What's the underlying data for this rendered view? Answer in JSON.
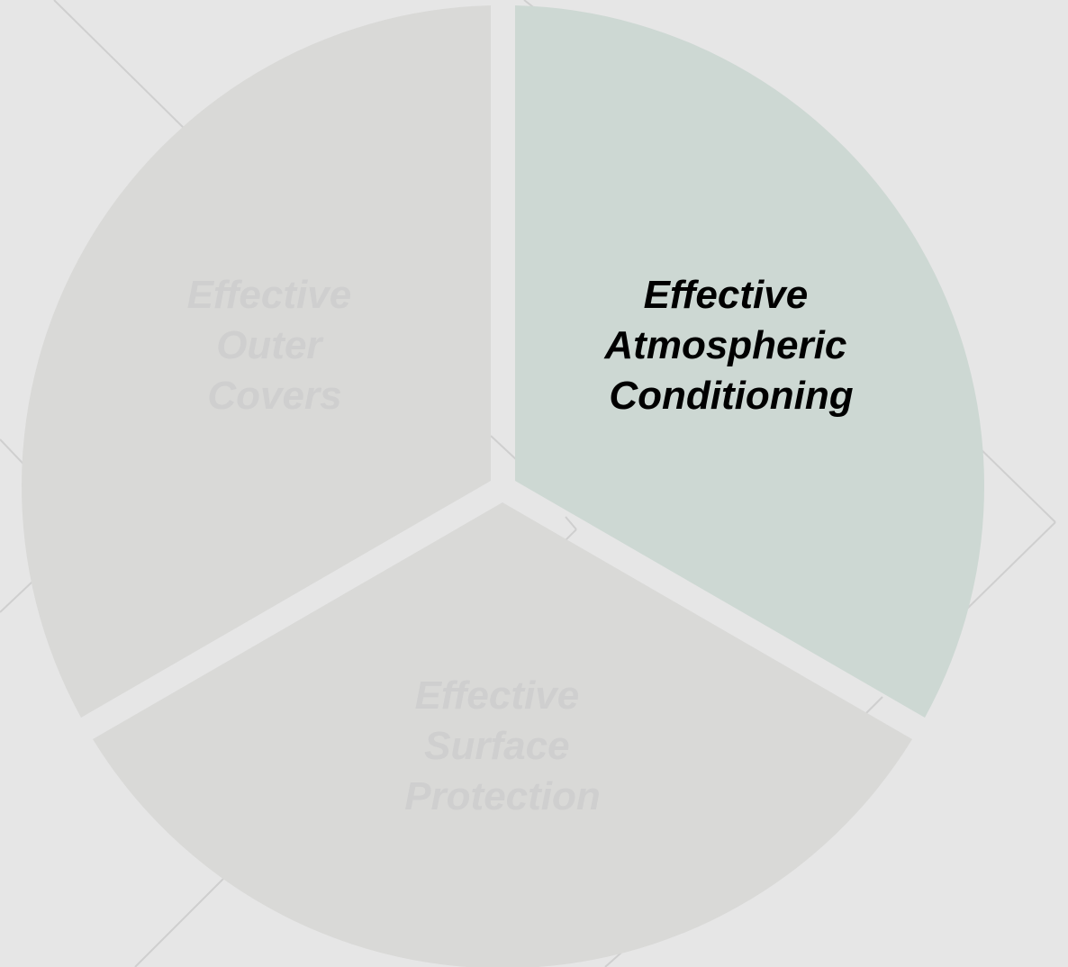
{
  "colors": {
    "background": "#e6e6e6",
    "decor_lines": "#cfcfcf",
    "segment_default": "#d9d9d7",
    "segment_active": "#cdd8d3",
    "label_default": "#cfcfcf",
    "label_active": "#000000"
  },
  "segments": [
    {
      "id": "outer-covers",
      "label_lines": [
        "Effective",
        "Outer",
        "Covers"
      ],
      "active": false
    },
    {
      "id": "atmospheric-conditioning",
      "label_lines": [
        "Effective",
        "Atmospheric",
        "Conditioning"
      ],
      "active": true
    },
    {
      "id": "surface-protection",
      "label_lines": [
        "Effective",
        "Surface",
        "Protection"
      ],
      "active": false
    }
  ]
}
